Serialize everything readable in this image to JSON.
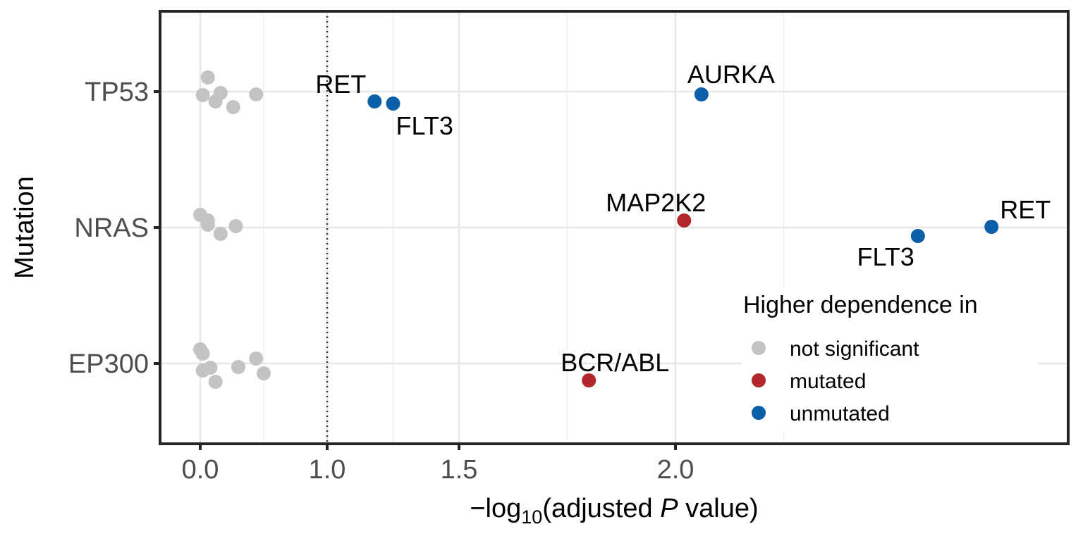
{
  "chart_data": {
    "type": "scatter",
    "xlabel": {
      "prefix": "−log",
      "subscript": "10",
      "middle": "(adjusted ",
      "italic": "P",
      "suffix": " value)"
    },
    "ylabel": "Mutation",
    "categories": [
      "TP53",
      "NRAS",
      "EP300"
    ],
    "x_ticks": [
      0.0,
      0.5,
      1.0,
      1.5
    ],
    "x_tick_labels": [
      "0.0",
      "1.0",
      "1.5",
      "2.0"
    ],
    "x_scale": "log10 of the adjusted P value, axis shows -log10(adjusted P) as 0.0 / 1.0 / 1.5 / 2.0",
    "x_range": [
      -0.17,
      3.57
    ],
    "threshold_line": {
      "x": 0.5,
      "style": "dotted"
    },
    "grid": true,
    "legend": {
      "title": "Higher dependence in",
      "position": "bottom-right inside",
      "entries": [
        {
          "key": "not_significant",
          "label": "not significant",
          "color": "#c3c3c3"
        },
        {
          "key": "mutated",
          "label": "mutated",
          "color": "#b2282a"
        },
        {
          "key": "unmutated",
          "label": "unmutated",
          "color": "#0b5ea8"
        }
      ]
    },
    "points": [
      {
        "category": "TP53",
        "x": 0.03,
        "group": "not_significant"
      },
      {
        "category": "TP53",
        "x": 0.01,
        "group": "not_significant"
      },
      {
        "category": "TP53",
        "x": 0.06,
        "group": "not_significant"
      },
      {
        "category": "TP53",
        "x": 0.08,
        "group": "not_significant"
      },
      {
        "category": "TP53",
        "x": 0.13,
        "group": "not_significant"
      },
      {
        "category": "TP53",
        "x": 0.22,
        "group": "not_significant"
      },
      {
        "category": "TP53",
        "x": 0.68,
        "group": "unmutated",
        "label": "RET"
      },
      {
        "category": "TP53",
        "x": 0.75,
        "group": "unmutated",
        "label": "FLT3"
      },
      {
        "category": "TP53",
        "x": 1.56,
        "group": "unmutated",
        "label": "AURKA"
      },
      {
        "category": "NRAS",
        "x": 0.0,
        "group": "not_significant"
      },
      {
        "category": "NRAS",
        "x": 0.03,
        "group": "not_significant"
      },
      {
        "category": "NRAS",
        "x": 0.03,
        "group": "not_significant"
      },
      {
        "category": "NRAS",
        "x": 0.08,
        "group": "not_significant"
      },
      {
        "category": "NRAS",
        "x": 0.14,
        "group": "not_significant"
      },
      {
        "category": "NRAS",
        "x": 1.52,
        "group": "mutated",
        "label": "MAP2K2"
      },
      {
        "category": "NRAS",
        "x": 2.06,
        "group": "unmutated",
        "label": "FLT3"
      },
      {
        "category": "NRAS",
        "x": 2.23,
        "group": "unmutated",
        "label": "RET"
      },
      {
        "category": "EP300",
        "x": 0.0,
        "group": "not_significant"
      },
      {
        "category": "EP300",
        "x": 0.01,
        "group": "not_significant"
      },
      {
        "category": "EP300",
        "x": 0.01,
        "group": "not_significant"
      },
      {
        "category": "EP300",
        "x": 0.04,
        "group": "not_significant"
      },
      {
        "category": "EP300",
        "x": 0.06,
        "group": "not_significant"
      },
      {
        "category": "EP300",
        "x": 0.15,
        "group": "not_significant"
      },
      {
        "category": "EP300",
        "x": 0.22,
        "group": "not_significant"
      },
      {
        "category": "EP300",
        "x": 0.25,
        "group": "not_significant"
      },
      {
        "category": "EP300",
        "x": 1.3,
        "group": "mutated",
        "label": "BCR/ABL"
      }
    ]
  }
}
